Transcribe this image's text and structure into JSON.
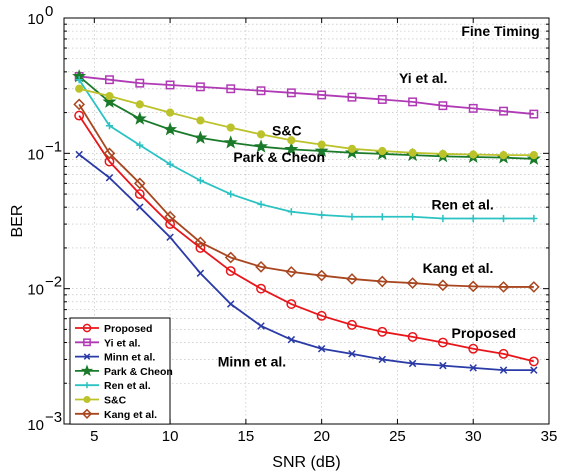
{
  "chart_data": {
    "type": "line",
    "xlabel": "SNR (dB)",
    "ylabel": "BER",
    "xlim": [
      3,
      35
    ],
    "ylim": [
      0.001,
      1
    ],
    "yscale": "log",
    "grid": true,
    "legend_position": "bottom-left",
    "xticks": [
      5,
      10,
      15,
      20,
      25,
      30,
      35
    ],
    "yticks": [
      {
        "value": 0.001,
        "base": "10",
        "exp": "−3"
      },
      {
        "value": 0.01,
        "base": "10",
        "exp": "−2"
      },
      {
        "value": 0.1,
        "base": "10",
        "exp": "−1"
      },
      {
        "value": 1,
        "base": "10",
        "exp": "0"
      }
    ],
    "x": [
      4,
      6,
      8,
      10,
      12,
      14,
      16,
      18,
      20,
      22,
      24,
      26,
      28,
      30,
      32,
      34
    ],
    "series": [
      {
        "name": "Proposed",
        "color": "#e8161a",
        "marker": "circle",
        "values": [
          0.19,
          0.087,
          0.05,
          0.03,
          0.02,
          0.0135,
          0.01,
          0.0077,
          0.0063,
          0.0054,
          0.0048,
          0.0044,
          0.004,
          0.0036,
          0.0033,
          0.0029
        ]
      },
      {
        "name": "Yi et al.",
        "color": "#b03ab5",
        "marker": "square",
        "values": [
          0.37,
          0.35,
          0.33,
          0.32,
          0.31,
          0.3,
          0.29,
          0.28,
          0.27,
          0.26,
          0.25,
          0.24,
          0.225,
          0.215,
          0.205,
          0.195
        ]
      },
      {
        "name": "Minn et al.",
        "color": "#2a3aa6",
        "marker": "x",
        "values": [
          0.098,
          0.066,
          0.04,
          0.024,
          0.013,
          0.0077,
          0.0053,
          0.0042,
          0.0036,
          0.0033,
          0.003,
          0.0028,
          0.0027,
          0.0026,
          0.0025,
          0.0025
        ]
      },
      {
        "name": "Park & Cheon",
        "color": "#1a7a2a",
        "marker": "star",
        "values": [
          0.37,
          0.24,
          0.18,
          0.15,
          0.13,
          0.12,
          0.112,
          0.107,
          0.104,
          0.101,
          0.099,
          0.097,
          0.095,
          0.094,
          0.093,
          0.091
        ]
      },
      {
        "name": "Ren et al.",
        "color": "#2ac2c2",
        "marker": "plus",
        "values": [
          0.35,
          0.16,
          0.115,
          0.083,
          0.063,
          0.05,
          0.042,
          0.037,
          0.035,
          0.034,
          0.034,
          0.034,
          0.033,
          0.033,
          0.033,
          0.033
        ]
      },
      {
        "name": "S&C",
        "color": "#bcc22a",
        "marker": "circle-filled",
        "values": [
          0.3,
          0.265,
          0.23,
          0.2,
          0.175,
          0.155,
          0.138,
          0.125,
          0.116,
          0.108,
          0.104,
          0.101,
          0.099,
          0.098,
          0.097,
          0.097
        ]
      },
      {
        "name": "Kang et al.",
        "color": "#a8461f",
        "marker": "diamond",
        "values": [
          0.23,
          0.1,
          0.06,
          0.034,
          0.022,
          0.017,
          0.0145,
          0.0133,
          0.0125,
          0.0118,
          0.0113,
          0.011,
          0.0106,
          0.0104,
          0.0103,
          0.0103
        ]
      }
    ],
    "annotations": [
      {
        "text": "Fine Timing",
        "x": 31.8,
        "y": 0.8
      },
      {
        "text": "Yi et al.",
        "x": 26.7,
        "y": 0.36
      },
      {
        "text": "S&C",
        "x": 17.7,
        "y": 0.148
      },
      {
        "text": "Park & Cheon",
        "x": 17.2,
        "y": 0.094
      },
      {
        "text": "Ren et al.",
        "x": 29.3,
        "y": 0.042
      },
      {
        "text": "Kang et al.",
        "x": 29.0,
        "y": 0.0142
      },
      {
        "text": "Proposed",
        "x": 30.7,
        "y": 0.0047
      },
      {
        "text": "Minn et al.",
        "x": 15.4,
        "y": 0.0029
      }
    ]
  }
}
